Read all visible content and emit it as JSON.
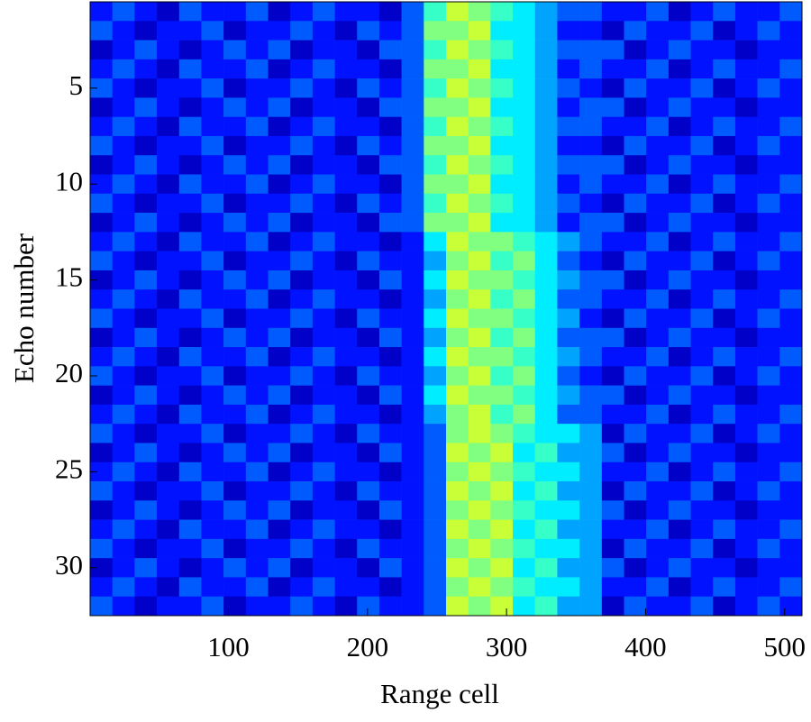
{
  "chart_data": {
    "type": "heatmap",
    "xlabel": "Range cell",
    "ylabel": "Echo number",
    "colormap": "jet",
    "clim": [
      0,
      1.4
    ],
    "xlim": [
      0.5,
      512.5
    ],
    "xticks": [
      100,
      200,
      300,
      400,
      500
    ],
    "ylim": [
      32.5,
      0.5
    ],
    "yticks": [
      5,
      10,
      15,
      20,
      25,
      30
    ],
    "xbins": [
      0.5,
      16.5,
      32.5,
      48.5,
      64.5,
      80.5,
      96.5,
      112.5,
      128.5,
      144.5,
      160.5,
      176.5,
      192.5,
      208.5,
      224.5,
      240.5,
      256.5,
      272.5,
      288.5,
      304.5,
      320.5,
      336.5,
      352.5,
      368.5,
      384.5,
      400.5,
      416.5,
      432.5,
      448.5,
      464.5,
      480.5,
      496.5,
      512.5
    ],
    "y": [
      1,
      2,
      3,
      4,
      5,
      6,
      7,
      8,
      9,
      10,
      11,
      12,
      13,
      14,
      15,
      16,
      17,
      18,
      19,
      20,
      21,
      22,
      23,
      24,
      25,
      26,
      27,
      28,
      29,
      30,
      31,
      32
    ],
    "z": [
      [
        0.2,
        0.3,
        0.2,
        0.1,
        0.3,
        0.2,
        0.2,
        0.3,
        0.1,
        0.2,
        0.3,
        0.2,
        0.2,
        0.1,
        0.3,
        0.6,
        0.8,
        0.7,
        0.6,
        0.5,
        0.4,
        0.3,
        0.3,
        0.2,
        0.2,
        0.3,
        0.1,
        0.2,
        0.3,
        0.2,
        0.2,
        0.3
      ],
      [
        0.3,
        0.2,
        0.1,
        0.2,
        0.2,
        0.3,
        0.1,
        0.2,
        0.2,
        0.3,
        0.2,
        0.1,
        0.3,
        0.2,
        0.3,
        0.7,
        0.7,
        0.8,
        0.5,
        0.5,
        0.4,
        0.2,
        0.2,
        0.1,
        0.3,
        0.2,
        0.2,
        0.3,
        0.1,
        0.2,
        0.3,
        0.2
      ],
      [
        0.1,
        0.2,
        0.3,
        0.2,
        0.1,
        0.2,
        0.3,
        0.2,
        0.3,
        0.1,
        0.2,
        0.2,
        0.1,
        0.3,
        0.3,
        0.6,
        0.8,
        0.7,
        0.6,
        0.5,
        0.4,
        0.3,
        0.3,
        0.3,
        0.1,
        0.2,
        0.3,
        0.2,
        0.2,
        0.1,
        0.2,
        0.2
      ],
      [
        0.2,
        0.3,
        0.2,
        0.1,
        0.3,
        0.2,
        0.2,
        0.3,
        0.1,
        0.2,
        0.3,
        0.2,
        0.2,
        0.1,
        0.3,
        0.7,
        0.7,
        0.8,
        0.5,
        0.5,
        0.4,
        0.2,
        0.3,
        0.2,
        0.2,
        0.3,
        0.1,
        0.2,
        0.3,
        0.2,
        0.2,
        0.3
      ],
      [
        0.3,
        0.2,
        0.1,
        0.2,
        0.2,
        0.3,
        0.1,
        0.2,
        0.2,
        0.3,
        0.2,
        0.1,
        0.3,
        0.2,
        0.3,
        0.6,
        0.8,
        0.7,
        0.6,
        0.5,
        0.4,
        0.3,
        0.2,
        0.1,
        0.3,
        0.2,
        0.2,
        0.3,
        0.1,
        0.2,
        0.3,
        0.2
      ],
      [
        0.1,
        0.2,
        0.3,
        0.2,
        0.1,
        0.2,
        0.3,
        0.2,
        0.3,
        0.1,
        0.2,
        0.2,
        0.1,
        0.3,
        0.3,
        0.7,
        0.7,
        0.8,
        0.5,
        0.5,
        0.4,
        0.2,
        0.3,
        0.3,
        0.1,
        0.2,
        0.3,
        0.2,
        0.2,
        0.1,
        0.2,
        0.2
      ],
      [
        0.2,
        0.3,
        0.2,
        0.1,
        0.3,
        0.2,
        0.2,
        0.3,
        0.1,
        0.2,
        0.3,
        0.2,
        0.2,
        0.1,
        0.3,
        0.6,
        0.8,
        0.7,
        0.6,
        0.5,
        0.4,
        0.3,
        0.3,
        0.2,
        0.2,
        0.3,
        0.1,
        0.2,
        0.3,
        0.2,
        0.2,
        0.3
      ],
      [
        0.3,
        0.2,
        0.1,
        0.2,
        0.2,
        0.3,
        0.1,
        0.2,
        0.2,
        0.3,
        0.2,
        0.1,
        0.3,
        0.2,
        0.3,
        0.7,
        0.7,
        0.8,
        0.5,
        0.5,
        0.4,
        0.2,
        0.2,
        0.1,
        0.3,
        0.2,
        0.2,
        0.3,
        0.1,
        0.2,
        0.3,
        0.2
      ],
      [
        0.1,
        0.2,
        0.3,
        0.2,
        0.1,
        0.2,
        0.3,
        0.2,
        0.3,
        0.1,
        0.2,
        0.2,
        0.1,
        0.3,
        0.3,
        0.6,
        0.8,
        0.7,
        0.6,
        0.5,
        0.4,
        0.3,
        0.3,
        0.3,
        0.1,
        0.2,
        0.3,
        0.2,
        0.2,
        0.1,
        0.2,
        0.2
      ],
      [
        0.2,
        0.3,
        0.2,
        0.1,
        0.3,
        0.2,
        0.2,
        0.3,
        0.1,
        0.2,
        0.3,
        0.2,
        0.2,
        0.1,
        0.3,
        0.7,
        0.7,
        0.8,
        0.5,
        0.5,
        0.4,
        0.2,
        0.3,
        0.2,
        0.2,
        0.3,
        0.1,
        0.2,
        0.3,
        0.2,
        0.2,
        0.3
      ],
      [
        0.3,
        0.2,
        0.1,
        0.2,
        0.2,
        0.3,
        0.1,
        0.2,
        0.2,
        0.3,
        0.2,
        0.1,
        0.3,
        0.2,
        0.3,
        0.6,
        0.8,
        0.7,
        0.6,
        0.5,
        0.4,
        0.3,
        0.2,
        0.1,
        0.3,
        0.2,
        0.2,
        0.3,
        0.1,
        0.2,
        0.3,
        0.2
      ],
      [
        0.1,
        0.2,
        0.3,
        0.2,
        0.1,
        0.2,
        0.3,
        0.2,
        0.3,
        0.1,
        0.2,
        0.2,
        0.1,
        0.3,
        0.3,
        0.7,
        0.7,
        0.8,
        0.5,
        0.5,
        0.4,
        0.2,
        0.3,
        0.3,
        0.1,
        0.2,
        0.3,
        0.2,
        0.2,
        0.1,
        0.2,
        0.2
      ],
      [
        0.2,
        0.3,
        0.2,
        0.1,
        0.3,
        0.2,
        0.2,
        0.3,
        0.1,
        0.2,
        0.3,
        0.2,
        0.2,
        0.1,
        0.2,
        0.5,
        0.8,
        0.7,
        0.7,
        0.6,
        0.5,
        0.4,
        0.3,
        0.2,
        0.2,
        0.3,
        0.1,
        0.2,
        0.3,
        0.2,
        0.2,
        0.3
      ],
      [
        0.3,
        0.2,
        0.1,
        0.2,
        0.2,
        0.3,
        0.1,
        0.2,
        0.2,
        0.3,
        0.2,
        0.1,
        0.3,
        0.2,
        0.2,
        0.4,
        0.7,
        0.8,
        0.6,
        0.7,
        0.5,
        0.3,
        0.2,
        0.1,
        0.3,
        0.2,
        0.2,
        0.3,
        0.1,
        0.2,
        0.3,
        0.2
      ],
      [
        0.1,
        0.2,
        0.3,
        0.2,
        0.1,
        0.2,
        0.3,
        0.2,
        0.3,
        0.1,
        0.2,
        0.2,
        0.1,
        0.3,
        0.2,
        0.5,
        0.8,
        0.7,
        0.7,
        0.6,
        0.5,
        0.4,
        0.3,
        0.3,
        0.1,
        0.2,
        0.3,
        0.2,
        0.2,
        0.1,
        0.2,
        0.2
      ],
      [
        0.2,
        0.3,
        0.2,
        0.1,
        0.3,
        0.2,
        0.2,
        0.3,
        0.1,
        0.2,
        0.3,
        0.2,
        0.2,
        0.1,
        0.2,
        0.4,
        0.7,
        0.8,
        0.6,
        0.7,
        0.5,
        0.3,
        0.3,
        0.2,
        0.2,
        0.3,
        0.1,
        0.2,
        0.3,
        0.2,
        0.2,
        0.3
      ],
      [
        0.3,
        0.2,
        0.1,
        0.2,
        0.2,
        0.3,
        0.1,
        0.2,
        0.2,
        0.3,
        0.2,
        0.1,
        0.3,
        0.2,
        0.2,
        0.5,
        0.8,
        0.7,
        0.7,
        0.6,
        0.5,
        0.4,
        0.2,
        0.1,
        0.3,
        0.2,
        0.2,
        0.3,
        0.1,
        0.2,
        0.3,
        0.2
      ],
      [
        0.1,
        0.2,
        0.3,
        0.2,
        0.1,
        0.2,
        0.3,
        0.2,
        0.3,
        0.1,
        0.2,
        0.2,
        0.1,
        0.3,
        0.2,
        0.4,
        0.7,
        0.8,
        0.6,
        0.7,
        0.5,
        0.3,
        0.3,
        0.3,
        0.1,
        0.2,
        0.3,
        0.2,
        0.2,
        0.1,
        0.2,
        0.2
      ],
      [
        0.2,
        0.3,
        0.2,
        0.1,
        0.3,
        0.2,
        0.2,
        0.3,
        0.1,
        0.2,
        0.3,
        0.2,
        0.2,
        0.1,
        0.2,
        0.5,
        0.8,
        0.7,
        0.7,
        0.6,
        0.5,
        0.4,
        0.3,
        0.2,
        0.2,
        0.3,
        0.1,
        0.2,
        0.3,
        0.2,
        0.2,
        0.3
      ],
      [
        0.3,
        0.2,
        0.1,
        0.2,
        0.2,
        0.3,
        0.1,
        0.2,
        0.2,
        0.3,
        0.2,
        0.1,
        0.3,
        0.2,
        0.2,
        0.4,
        0.7,
        0.8,
        0.6,
        0.7,
        0.5,
        0.3,
        0.2,
        0.1,
        0.3,
        0.2,
        0.2,
        0.3,
        0.1,
        0.2,
        0.3,
        0.2
      ],
      [
        0.1,
        0.2,
        0.3,
        0.2,
        0.1,
        0.2,
        0.3,
        0.2,
        0.3,
        0.1,
        0.2,
        0.2,
        0.1,
        0.3,
        0.2,
        0.5,
        0.8,
        0.7,
        0.7,
        0.6,
        0.5,
        0.4,
        0.3,
        0.3,
        0.1,
        0.2,
        0.3,
        0.2,
        0.2,
        0.1,
        0.2,
        0.2
      ],
      [
        0.2,
        0.3,
        0.2,
        0.1,
        0.3,
        0.2,
        0.2,
        0.3,
        0.1,
        0.2,
        0.3,
        0.2,
        0.2,
        0.1,
        0.2,
        0.4,
        0.7,
        0.8,
        0.6,
        0.7,
        0.5,
        0.3,
        0.3,
        0.2,
        0.2,
        0.3,
        0.1,
        0.2,
        0.3,
        0.2,
        0.2,
        0.3
      ],
      [
        0.3,
        0.2,
        0.1,
        0.2,
        0.2,
        0.3,
        0.1,
        0.2,
        0.2,
        0.3,
        0.2,
        0.1,
        0.3,
        0.2,
        0.2,
        0.3,
        0.7,
        0.8,
        0.7,
        0.6,
        0.5,
        0.5,
        0.4,
        0.1,
        0.3,
        0.2,
        0.2,
        0.3,
        0.1,
        0.2,
        0.3,
        0.2
      ],
      [
        0.1,
        0.2,
        0.3,
        0.2,
        0.1,
        0.2,
        0.3,
        0.2,
        0.3,
        0.1,
        0.2,
        0.2,
        0.1,
        0.3,
        0.2,
        0.3,
        0.8,
        0.7,
        0.8,
        0.5,
        0.6,
        0.4,
        0.4,
        0.3,
        0.1,
        0.2,
        0.3,
        0.2,
        0.2,
        0.1,
        0.2,
        0.2
      ],
      [
        0.2,
        0.3,
        0.2,
        0.1,
        0.3,
        0.2,
        0.2,
        0.3,
        0.1,
        0.2,
        0.3,
        0.2,
        0.2,
        0.1,
        0.2,
        0.3,
        0.7,
        0.8,
        0.7,
        0.6,
        0.5,
        0.5,
        0.4,
        0.2,
        0.2,
        0.3,
        0.1,
        0.2,
        0.3,
        0.2,
        0.2,
        0.3
      ],
      [
        0.3,
        0.2,
        0.1,
        0.2,
        0.2,
        0.3,
        0.1,
        0.2,
        0.2,
        0.3,
        0.2,
        0.1,
        0.3,
        0.2,
        0.2,
        0.3,
        0.8,
        0.7,
        0.8,
        0.5,
        0.6,
        0.4,
        0.4,
        0.1,
        0.3,
        0.2,
        0.2,
        0.3,
        0.1,
        0.2,
        0.3,
        0.2
      ],
      [
        0.1,
        0.2,
        0.3,
        0.2,
        0.1,
        0.2,
        0.3,
        0.2,
        0.3,
        0.1,
        0.2,
        0.2,
        0.1,
        0.3,
        0.2,
        0.3,
        0.7,
        0.8,
        0.7,
        0.6,
        0.5,
        0.5,
        0.4,
        0.3,
        0.1,
        0.2,
        0.3,
        0.2,
        0.2,
        0.1,
        0.2,
        0.2
      ],
      [
        0.2,
        0.3,
        0.2,
        0.1,
        0.3,
        0.2,
        0.2,
        0.3,
        0.1,
        0.2,
        0.3,
        0.2,
        0.2,
        0.1,
        0.2,
        0.3,
        0.8,
        0.7,
        0.8,
        0.5,
        0.6,
        0.4,
        0.4,
        0.2,
        0.2,
        0.3,
        0.1,
        0.2,
        0.3,
        0.2,
        0.2,
        0.3
      ],
      [
        0.3,
        0.2,
        0.1,
        0.2,
        0.2,
        0.3,
        0.1,
        0.2,
        0.2,
        0.3,
        0.2,
        0.1,
        0.3,
        0.2,
        0.2,
        0.3,
        0.7,
        0.8,
        0.7,
        0.6,
        0.5,
        0.5,
        0.4,
        0.1,
        0.3,
        0.2,
        0.2,
        0.3,
        0.1,
        0.2,
        0.3,
        0.2
      ],
      [
        0.1,
        0.2,
        0.3,
        0.2,
        0.1,
        0.2,
        0.3,
        0.2,
        0.3,
        0.1,
        0.2,
        0.2,
        0.1,
        0.3,
        0.2,
        0.3,
        0.8,
        0.7,
        0.8,
        0.5,
        0.6,
        0.4,
        0.4,
        0.3,
        0.1,
        0.2,
        0.3,
        0.2,
        0.2,
        0.1,
        0.2,
        0.2
      ],
      [
        0.2,
        0.3,
        0.2,
        0.1,
        0.3,
        0.2,
        0.2,
        0.3,
        0.1,
        0.2,
        0.3,
        0.2,
        0.2,
        0.1,
        0.2,
        0.3,
        0.7,
        0.8,
        0.7,
        0.6,
        0.5,
        0.5,
        0.4,
        0.2,
        0.2,
        0.3,
        0.1,
        0.2,
        0.3,
        0.2,
        0.2,
        0.3
      ],
      [
        0.3,
        0.2,
        0.1,
        0.2,
        0.2,
        0.3,
        0.1,
        0.2,
        0.2,
        0.3,
        0.2,
        0.1,
        0.3,
        0.2,
        0.2,
        0.3,
        0.8,
        0.7,
        0.8,
        0.5,
        0.6,
        0.4,
        0.4,
        0.1,
        0.3,
        0.2,
        0.2,
        0.3,
        0.1,
        0.2,
        0.3,
        0.2
      ]
    ]
  }
}
